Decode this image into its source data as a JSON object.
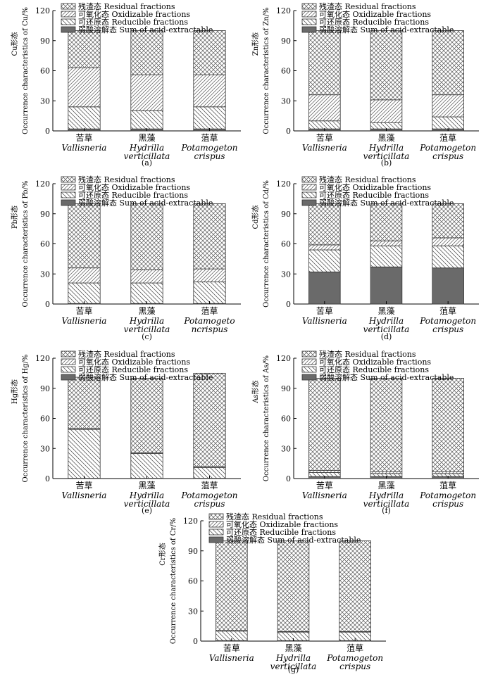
{
  "legend": {
    "residual": "残渣态 Residual fractions",
    "oxidizable": "可氧化态 Oxidizable fractions",
    "reducible": "可还原态 Reducible fractions",
    "acid": "弱酸溶解态 Sum of acid-extractable"
  },
  "colors": {
    "acid": "#6a6a6a",
    "stroke": "#000000"
  },
  "chart_data": [
    {
      "type": "bar",
      "stacked": true,
      "panel_label": "(a)",
      "metal": "Cu",
      "ylabel_cn": "Cu形态",
      "ylabel_en": "Occurrence characteristics of Cu/%",
      "ylim": [
        0,
        120
      ],
      "yticks": [
        "0",
        "30",
        "60",
        "90",
        "120"
      ],
      "categories": [
        {
          "cn": "苦草",
          "en1": "Vallisneria",
          "en2": ""
        },
        {
          "cn": "黑藻",
          "en1": "Hydrilla",
          "en2": "verticillata"
        },
        {
          "cn": "菹草",
          "en1": "Potamogeton",
          "en2": "crispus"
        }
      ],
      "series": [
        {
          "name": "acid",
          "values": [
            2,
            2,
            2
          ]
        },
        {
          "name": "reducible",
          "values": [
            22,
            18,
            22
          ]
        },
        {
          "name": "oxidizable",
          "values": [
            39,
            36,
            32
          ]
        },
        {
          "name": "residual",
          "values": [
            37,
            44,
            44
          ]
        }
      ]
    },
    {
      "type": "bar",
      "stacked": true,
      "panel_label": "(b)",
      "metal": "Zn",
      "ylabel_cn": "Zn形态",
      "ylabel_en": "Occurrence characteristics of Zn/%",
      "ylim": [
        0,
        120
      ],
      "yticks": [
        "0",
        "30",
        "60",
        "90",
        "120"
      ],
      "categories": [
        {
          "cn": "苦草",
          "en1": "Vallisneria",
          "en2": ""
        },
        {
          "cn": "黑藻",
          "en1": "Hydrilla",
          "en2": "verticillata"
        },
        {
          "cn": "菹草",
          "en1": "Potamogeton",
          "en2": "crispus"
        }
      ],
      "series": [
        {
          "name": "acid",
          "values": [
            2,
            2,
            2
          ]
        },
        {
          "name": "reducible",
          "values": [
            8,
            6,
            12
          ]
        },
        {
          "name": "oxidizable",
          "values": [
            26,
            23,
            22
          ]
        },
        {
          "name": "residual",
          "values": [
            64,
            69,
            64
          ]
        }
      ]
    },
    {
      "type": "bar",
      "stacked": true,
      "panel_label": "(c)",
      "metal": "Pb",
      "ylabel_cn": "Pb形态",
      "ylabel_en": "Occurrence characteristics of Pb/%",
      "ylim": [
        0,
        120
      ],
      "yticks": [
        "0",
        "30",
        "60",
        "90",
        "120"
      ],
      "categories": [
        {
          "cn": "苦草",
          "en1": "Vallisneria",
          "en2": ""
        },
        {
          "cn": "黑藻",
          "en1": "Hydrilla",
          "en2": "verticillata"
        },
        {
          "cn": "菹草",
          "en1": "Potamogeto",
          "en2": "ncrispus"
        }
      ],
      "series": [
        {
          "name": "acid",
          "values": [
            0.5,
            0.5,
            0.5
          ]
        },
        {
          "name": "reducible",
          "values": [
            20.5,
            20.5,
            21.5
          ]
        },
        {
          "name": "oxidizable",
          "values": [
            15,
            13,
            13
          ]
        },
        {
          "name": "residual",
          "values": [
            64,
            66,
            65
          ]
        }
      ]
    },
    {
      "type": "bar",
      "stacked": true,
      "panel_label": "(d)",
      "metal": "Cd",
      "ylabel_cn": "Cd形态",
      "ylabel_en": "Occurrence characteristics of Cd/%",
      "ylim": [
        0,
        120
      ],
      "yticks": [
        "0",
        "30",
        "60",
        "90",
        "120"
      ],
      "categories": [
        {
          "cn": "苦草",
          "en1": "Vallisneria",
          "en2": ""
        },
        {
          "cn": "黑藻",
          "en1": "Hydrilla",
          "en2": "verticillata"
        },
        {
          "cn": "菹草",
          "en1": "Potamogeton",
          "en2": "crispus"
        }
      ],
      "series": [
        {
          "name": "acid",
          "values": [
            32,
            37,
            36
          ]
        },
        {
          "name": "reducible",
          "values": [
            22,
            21,
            22
          ]
        },
        {
          "name": "oxidizable",
          "values": [
            5,
            5,
            8
          ]
        },
        {
          "name": "residual",
          "values": [
            41,
            37,
            34
          ]
        }
      ]
    },
    {
      "type": "bar",
      "stacked": true,
      "panel_label": "(e)",
      "metal": "Hg",
      "ylabel_cn": "Hg形态",
      "ylabel_en": "Occurrence characteristics of Hg/%",
      "ylim": [
        0,
        120
      ],
      "yticks": [
        "0",
        "30",
        "60",
        "90",
        "120"
      ],
      "categories": [
        {
          "cn": "苦草",
          "en1": "Vallisneria",
          "en2": ""
        },
        {
          "cn": "黑藻",
          "en1": "Hydrilla",
          "en2": "verticillata"
        },
        {
          "cn": "菹草",
          "en1": "Potamogeton",
          "en2": "crispus"
        }
      ],
      "series": [
        {
          "name": "acid",
          "values": [
            0.3,
            0.3,
            0.3
          ]
        },
        {
          "name": "reducible",
          "values": [
            48.7,
            24.7,
            10.7
          ]
        },
        {
          "name": "oxidizable",
          "values": [
            1,
            1,
            1
          ]
        },
        {
          "name": "residual",
          "values": [
            51,
            74,
            93
          ]
        }
      ]
    },
    {
      "type": "bar",
      "stacked": true,
      "panel_label": "(f)",
      "metal": "As",
      "ylabel_cn": "As形态",
      "ylabel_en": "Occurrence characteristics of As/%",
      "ylim": [
        0,
        120
      ],
      "yticks": [
        "0",
        "30",
        "60",
        "90",
        "120"
      ],
      "categories": [
        {
          "cn": "苦草",
          "en1": "Vallisneria",
          "en2": ""
        },
        {
          "cn": "黑藻",
          "en1": "Hydrilla",
          "en2": "verticillata"
        },
        {
          "cn": "菹草",
          "en1": "Potamogeton",
          "en2": "crispus"
        }
      ],
      "series": [
        {
          "name": "acid",
          "values": [
            2,
            2,
            2
          ]
        },
        {
          "name": "reducible",
          "values": [
            4,
            3,
            3
          ]
        },
        {
          "name": "oxidizable",
          "values": [
            2,
            2,
            2
          ]
        },
        {
          "name": "residual",
          "values": [
            92,
            93,
            93
          ]
        }
      ]
    },
    {
      "type": "bar",
      "stacked": true,
      "panel_label": "(g)",
      "metal": "Cr",
      "ylabel_cn": "Cr形态",
      "ylabel_en": "Occurrence characteristics of Cr/%",
      "ylim": [
        0,
        120
      ],
      "yticks": [
        "0",
        "30",
        "60",
        "90",
        "120"
      ],
      "categories": [
        {
          "cn": "苦草",
          "en1": "Vallisneria",
          "en2": ""
        },
        {
          "cn": "黑藻",
          "en1": "Hydrilla",
          "en2": "verticillata"
        },
        {
          "cn": "菹草",
          "en1": "Potamogeton",
          "en2": "crispus"
        }
      ],
      "series": [
        {
          "name": "acid",
          "values": [
            0.5,
            0.5,
            0.5
          ]
        },
        {
          "name": "reducible",
          "values": [
            9.5,
            8.5,
            8.5
          ]
        },
        {
          "name": "oxidizable",
          "values": [
            0.5,
            0.5,
            0.5
          ]
        },
        {
          "name": "residual",
          "values": [
            89.5,
            90.5,
            90.5
          ]
        }
      ]
    }
  ]
}
